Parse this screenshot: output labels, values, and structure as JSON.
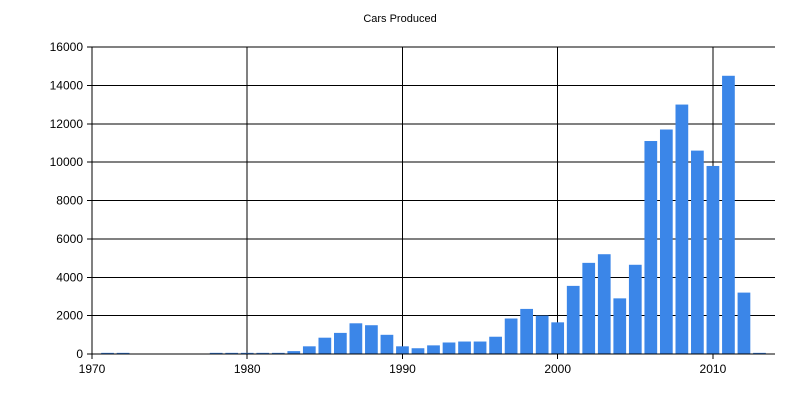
{
  "chart_data": {
    "type": "bar",
    "title": "Cars Produced",
    "xlabel": "",
    "ylabel": "",
    "xlim": [
      1970,
      2014
    ],
    "ylim": [
      0,
      16000
    ],
    "x_ticks": [
      1970,
      1980,
      1990,
      2000,
      2010
    ],
    "y_ticks": [
      0,
      2000,
      4000,
      6000,
      8000,
      10000,
      12000,
      14000,
      16000
    ],
    "grid": true,
    "legend": "none",
    "bar_color": "#3b86e8",
    "series": [
      {
        "x": [
          1971,
          1972,
          1978,
          1979,
          1980,
          1981,
          1982,
          1983,
          1984,
          1985,
          1986,
          1987,
          1988,
          1989,
          1990,
          1991,
          1992,
          1993,
          1994,
          1995,
          1996,
          1997,
          1998,
          1999,
          2000,
          2001,
          2002,
          2003,
          2004,
          2005,
          2006,
          2007,
          2008,
          2009,
          2010,
          2011,
          2012,
          2013
        ],
        "values": [
          60,
          60,
          60,
          60,
          60,
          60,
          60,
          150,
          400,
          850,
          1100,
          1600,
          1500,
          1000,
          400,
          300,
          450,
          600,
          650,
          650,
          900,
          1850,
          2350,
          2000,
          1650,
          3550,
          4750,
          5200,
          2900,
          4650,
          11100,
          11700,
          13000,
          10600,
          9800,
          14500,
          3200,
          60
        ]
      }
    ]
  }
}
